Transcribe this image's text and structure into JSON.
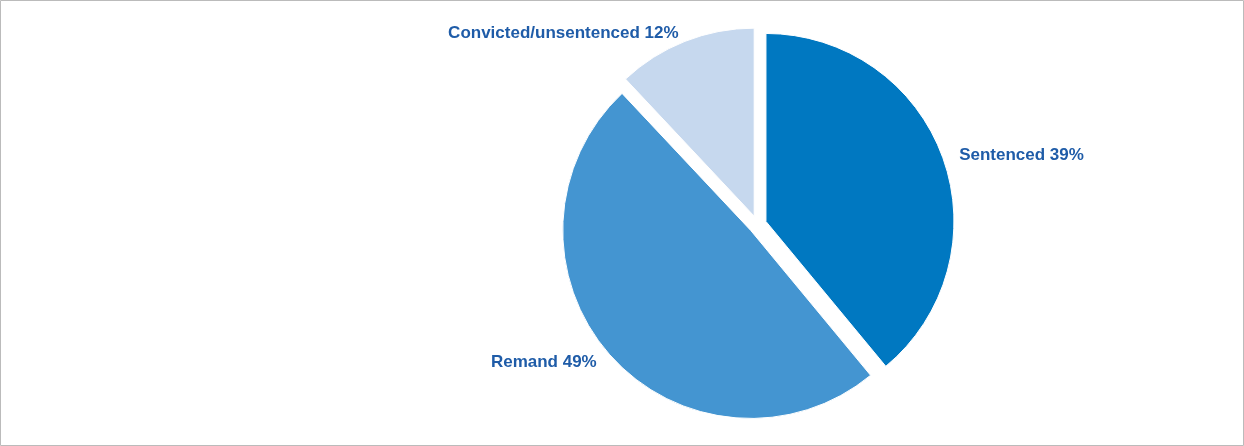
{
  "chart_data": {
    "type": "pie",
    "categories": [
      "Sentenced",
      "Remand",
      "Convicted/unsentenced"
    ],
    "values": [
      39,
      49,
      12
    ],
    "colors": [
      "#0078c1",
      "#4495d1",
      "#c6d8ee"
    ],
    "value_labels": [
      "39%",
      "49%",
      "12%"
    ]
  }
}
